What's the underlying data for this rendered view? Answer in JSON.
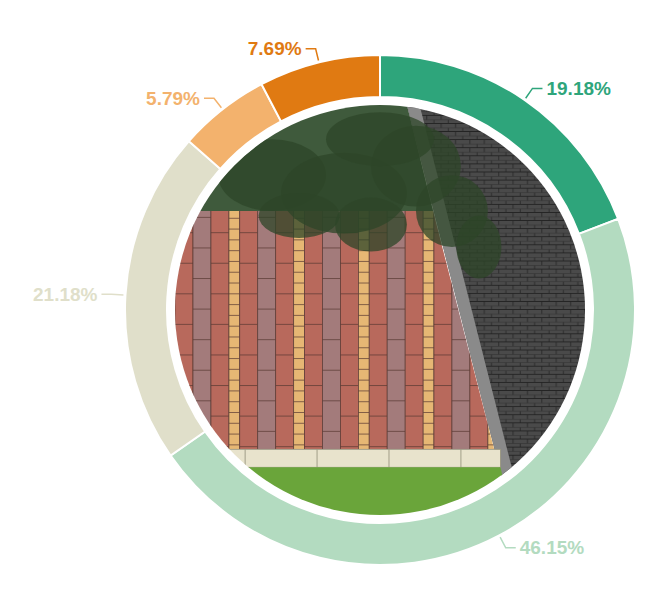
{
  "chart_data": {
    "type": "pie",
    "values": [
      19.18,
      46.15,
      21.18,
      5.79,
      7.69
    ],
    "value_labels": [
      "19.18%",
      "46.15%",
      "21.18%",
      "5.79%",
      "7.69%"
    ],
    "colors": [
      "#2ea57b",
      "#b3dbc0",
      "#e0dfca",
      "#f3b26d",
      "#e07a12"
    ],
    "data_labels": true
  }
}
